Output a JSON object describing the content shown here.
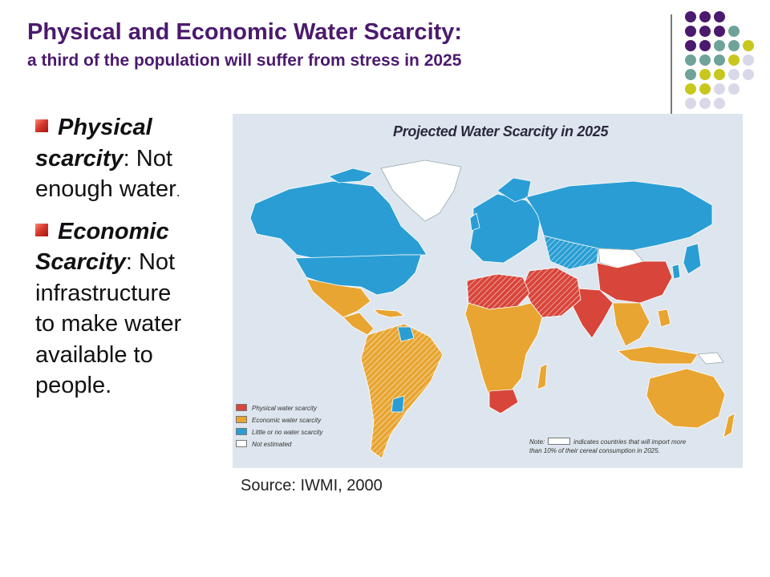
{
  "slide": {
    "title": "Physical and Economic Water Scarcity:",
    "subtitle": "a third of the population will suffer from stress in 2025",
    "bullets": [
      {
        "term": "Physical scarcity",
        "colon": ":",
        "text": " Not enough water",
        "tail": "."
      },
      {
        "term": "Economic Scarcity",
        "colon": ":",
        "text": " Not infrastructure to make water available to people."
      }
    ],
    "source": "Source: IWMI, 2000"
  },
  "map": {
    "title": "Projected Water Scarcity in 2025",
    "legend": [
      {
        "label": "Physical water scarcity",
        "color": "#d8453a"
      },
      {
        "label": "Economic water scarcity",
        "color": "#e8a532"
      },
      {
        "label": "Little or no water scarcity",
        "color": "#2a9ed4"
      },
      {
        "label": "Not estimated",
        "color": "#ffffff"
      }
    ],
    "note": {
      "prefix": "Note:",
      "line1": "indicates countries that will import more",
      "line2": "than 10% of their cereal consumption in 2025."
    }
  },
  "theme": {
    "title_color": "#4b1a6e",
    "dot_colors": [
      "#4b1a6e",
      "#6fa39a",
      "#c7c71e",
      "#d8d8e8"
    ]
  }
}
